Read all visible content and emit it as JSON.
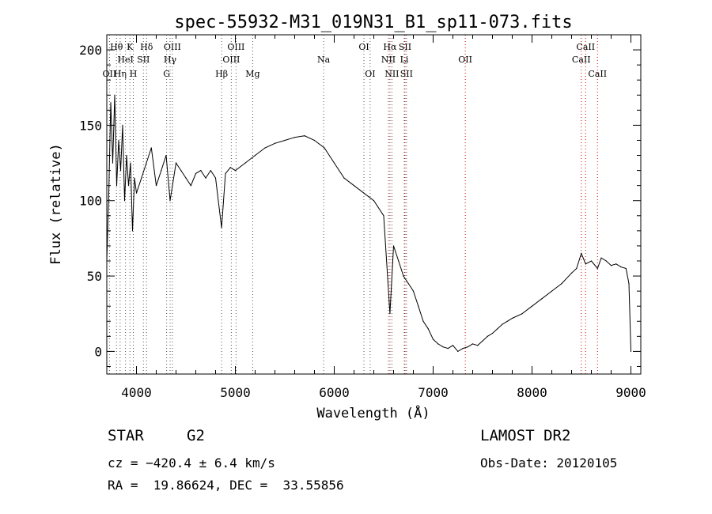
{
  "chart_data": {
    "type": "line",
    "title": "spec-55932-M31_019N31_B1_sp11-073.fits",
    "xlabel": "Wavelength (Å)",
    "ylabel": "Flux (relative)",
    "xlim": [
      3700,
      9100
    ],
    "ylim": [
      -15,
      210
    ],
    "xticks": [
      4000,
      5000,
      6000,
      7000,
      8000,
      9000
    ],
    "yticks": [
      0,
      50,
      100,
      150,
      200
    ],
    "grid": false,
    "series": [
      {
        "x": [
          3700,
          3720,
          3740,
          3760,
          3780,
          3800,
          3820,
          3840,
          3860,
          3880,
          3900,
          3920,
          3940,
          3960,
          3980,
          4000,
          4050,
          4100,
          4150,
          4200,
          4250,
          4300,
          4340,
          4400,
          4450,
          4500,
          4550,
          4600,
          4650,
          4700,
          4750,
          4800,
          4861,
          4900,
          4950,
          5000,
          5100,
          5200,
          5300,
          5400,
          5500,
          5600,
          5700,
          5800,
          5900,
          6000,
          6100,
          6200,
          6300,
          6400,
          6500,
          6563,
          6600,
          6650,
          6700,
          6750,
          6800,
          6850,
          6900,
          6950,
          7000,
          7050,
          7100,
          7150,
          7200,
          7250,
          7300,
          7350,
          7400,
          7450,
          7500,
          7550,
          7600,
          7650,
          7700,
          7750,
          7800,
          7900,
          8000,
          8100,
          8200,
          8300,
          8400,
          8450,
          8498,
          8542,
          8600,
          8662,
          8700,
          8750,
          8800,
          8850,
          8900,
          8950,
          8980,
          9000
        ],
        "y": [
          60,
          105,
          165,
          125,
          170,
          110,
          140,
          120,
          150,
          100,
          130,
          110,
          125,
          80,
          115,
          105,
          115,
          125,
          135,
          110,
          120,
          130,
          100,
          125,
          120,
          115,
          110,
          118,
          120,
          115,
          120,
          115,
          82,
          118,
          122,
          120,
          125,
          130,
          135,
          138,
          140,
          142,
          143,
          140,
          135,
          125,
          115,
          110,
          105,
          100,
          90,
          25,
          70,
          60,
          50,
          45,
          40,
          30,
          20,
          15,
          8,
          5,
          3,
          2,
          4,
          0,
          2,
          3,
          5,
          4,
          7,
          10,
          12,
          15,
          18,
          20,
          22,
          25,
          30,
          35,
          40,
          45,
          52,
          55,
          65,
          58,
          60,
          55,
          62,
          60,
          57,
          58,
          56,
          55,
          45,
          0
        ]
      }
    ],
    "lines": [
      {
        "label": "Hθ",
        "x": 3798,
        "row": 1,
        "color": "#555555"
      },
      {
        "label": "OII",
        "x": 3727,
        "row": 3,
        "color": "#555555"
      },
      {
        "label": "Hη",
        "x": 3835,
        "row": 3,
        "color": "#555555"
      },
      {
        "label": "HeI",
        "x": 3889,
        "row": 2,
        "color": "#555555"
      },
      {
        "label": "K",
        "x": 3934,
        "row": 1,
        "color": "#555555"
      },
      {
        "label": "H",
        "x": 3968,
        "row": 3,
        "color": "#555555"
      },
      {
        "label": "SII",
        "x": 4070,
        "row": 2,
        "color": "#555555"
      },
      {
        "label": "Hδ",
        "x": 4102,
        "row": 1,
        "color": "#555555"
      },
      {
        "label": "OIII",
        "x": 4363,
        "row": 1,
        "color": "#555555"
      },
      {
        "label": "Hγ",
        "x": 4340,
        "row": 2,
        "color": "#555555"
      },
      {
        "label": "G",
        "x": 4305,
        "row": 3,
        "color": "#555555"
      },
      {
        "label": "Hβ",
        "x": 4861,
        "row": 3,
        "color": "#555555"
      },
      {
        "label": "OIII",
        "x": 5007,
        "row": 1,
        "color": "#555555"
      },
      {
        "label": "OIII",
        "x": 4959,
        "row": 2,
        "color": "#555555"
      },
      {
        "label": "Mg",
        "x": 5175,
        "row": 3,
        "color": "#555555"
      },
      {
        "label": "Na",
        "x": 5893,
        "row": 2,
        "color": "#555555"
      },
      {
        "label": "OI",
        "x": 6300,
        "row": 1,
        "color": "#555555"
      },
      {
        "label": "OI",
        "x": 6363,
        "row": 3,
        "color": "#555555"
      },
      {
        "label": "Hα",
        "x": 6563,
        "row": 1,
        "color": "#cc0000"
      },
      {
        "label": "SII",
        "x": 6716,
        "row": 1,
        "color": "#cc0000"
      },
      {
        "label": "NII",
        "x": 6548,
        "row": 2,
        "color": "#555555"
      },
      {
        "label": "Li",
        "x": 6708,
        "row": 2,
        "color": "#555555"
      },
      {
        "label": "NII",
        "x": 6583,
        "row": 3,
        "color": "#555555"
      },
      {
        "label": "SII",
        "x": 6731,
        "row": 3,
        "color": "#555555"
      },
      {
        "label": "OII",
        "x": 7325,
        "row": 2,
        "color": "#cc0000"
      },
      {
        "label": "CaII",
        "x": 8542,
        "row": 1,
        "color": "#cc0000"
      },
      {
        "label": "CaII",
        "x": 8498,
        "row": 2,
        "color": "#cc0000"
      },
      {
        "label": "CaII",
        "x": 8662,
        "row": 3,
        "color": "#cc0000"
      }
    ]
  },
  "info": {
    "class": "STAR",
    "subclass": "G2",
    "survey": "LAMOST DR2",
    "cz": "cz = −420.4 ± 6.4 km/s",
    "obs_date": "Obs-Date: 20120105",
    "radec": "RA =  19.86624, DEC =  33.55856"
  }
}
